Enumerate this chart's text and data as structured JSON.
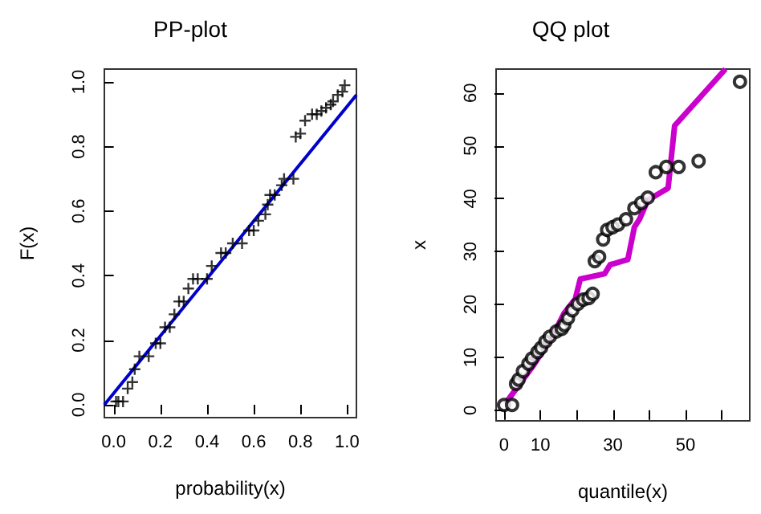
{
  "chart_data": [
    {
      "type": "scatter",
      "title": "PP-plot",
      "xlabel": "probability(x)",
      "ylabel": "F(x)",
      "xlim": [
        -0.04,
        1.04
      ],
      "ylim": [
        -0.04,
        1.04
      ],
      "xticks": [
        {
          "value": 0,
          "label": "0.0"
        },
        0.2,
        0.4,
        0.6,
        0.8,
        {
          "value": 1,
          "label": "1.0"
        }
      ],
      "yticks": [
        {
          "value": 0,
          "label": "0.0"
        },
        0.2,
        0.4,
        0.6,
        0.8,
        {
          "value": 1,
          "label": "1.0"
        }
      ],
      "grid": false,
      "marker": "cross",
      "series": [
        {
          "color": "#000000",
          "x": [
            0.01,
            0.02,
            0.04,
            0.06,
            0.08,
            0.09,
            0.11,
            0.15,
            0.18,
            0.2,
            0.22,
            0.24,
            0.26,
            0.28,
            0.3,
            0.32,
            0.34,
            0.36,
            0.4,
            0.42,
            0.46,
            0.48,
            0.51,
            0.55,
            0.58,
            0.6,
            0.62,
            0.65,
            0.66,
            0.67,
            0.69,
            0.72,
            0.73,
            0.77,
            0.78,
            0.8,
            0.82,
            0.85,
            0.87,
            0.89,
            0.91,
            0.93,
            0.94,
            0.96,
            0.98,
            0.99
          ],
          "values": [
            0.01,
            0.01,
            0.01,
            0.05,
            0.07,
            0.11,
            0.15,
            0.15,
            0.19,
            0.19,
            0.24,
            0.24,
            0.28,
            0.32,
            0.32,
            0.36,
            0.39,
            0.39,
            0.39,
            0.43,
            0.47,
            0.47,
            0.5,
            0.5,
            0.54,
            0.54,
            0.57,
            0.59,
            0.62,
            0.65,
            0.65,
            0.68,
            0.7,
            0.7,
            0.83,
            0.84,
            0.88,
            0.9,
            0.9,
            0.91,
            0.92,
            0.93,
            0.94,
            0.96,
            0.97,
            0.99
          ]
        },
        {
          "type": "line",
          "color": "#0000cc",
          "marker": "none",
          "x": [
            -0.04,
            1.04
          ],
          "values": [
            0.0,
            0.96
          ]
        }
      ]
    },
    {
      "type": "scatter",
      "title": "QQ plot",
      "xlabel": "quantile(x)",
      "ylabel": "x",
      "xlim": [
        -2.2,
        67.7
      ],
      "ylim": [
        -2,
        64.5
      ],
      "xticks": [
        0,
        10,
        {
          "value": 20,
          "label": null
        },
        30,
        {
          "value": 40,
          "label": null
        },
        50,
        {
          "value": 60,
          "label": null
        }
      ],
      "yticks": [
        0,
        10,
        20,
        30,
        40,
        50,
        60
      ],
      "grid": false,
      "marker": "circle",
      "series": [
        {
          "color": "#000000",
          "x": [
            0,
            2.2,
            3.3,
            4,
            5.2,
            6.7,
            7.7,
            9.2,
            10.2,
            11.4,
            12.6,
            14.4,
            15.9,
            16.6,
            17.6,
            18.8,
            20.3,
            21.8,
            23.3,
            24.4,
            25,
            26.2,
            27.3,
            28.4,
            29.9,
            31.4,
            33.6,
            35.9,
            37.8,
            39.6,
            41.8,
            44.7,
            48.1,
            53.6,
            65
          ],
          "values": [
            1,
            1,
            5,
            5.8,
            7.4,
            8.8,
            9.8,
            11,
            11.8,
            13,
            13.9,
            14.9,
            15.4,
            16.1,
            17.4,
            18.9,
            20.1,
            20.9,
            21.2,
            22,
            28.2,
            29,
            32.3,
            34.1,
            34.6,
            35.1,
            36.1,
            38.2,
            39.2,
            40.2,
            45,
            46,
            46,
            47.1,
            62.1
          ]
        },
        {
          "type": "line",
          "color": "#cc00cc",
          "marker": "none",
          "x": [
            0.3,
            8.4,
            13.6,
            16.6,
            19.6,
            21,
            27.7,
            29.2,
            34.1,
            35.9,
            37.3,
            39.6,
            45.2,
            47,
            61
          ],
          "values": [
            1.2,
            8.8,
            14.4,
            18.4,
            21,
            24.8,
            25.8,
            27.5,
            28.5,
            34.6,
            36.1,
            39.7,
            42,
            53.8,
            64.5
          ]
        }
      ]
    }
  ]
}
